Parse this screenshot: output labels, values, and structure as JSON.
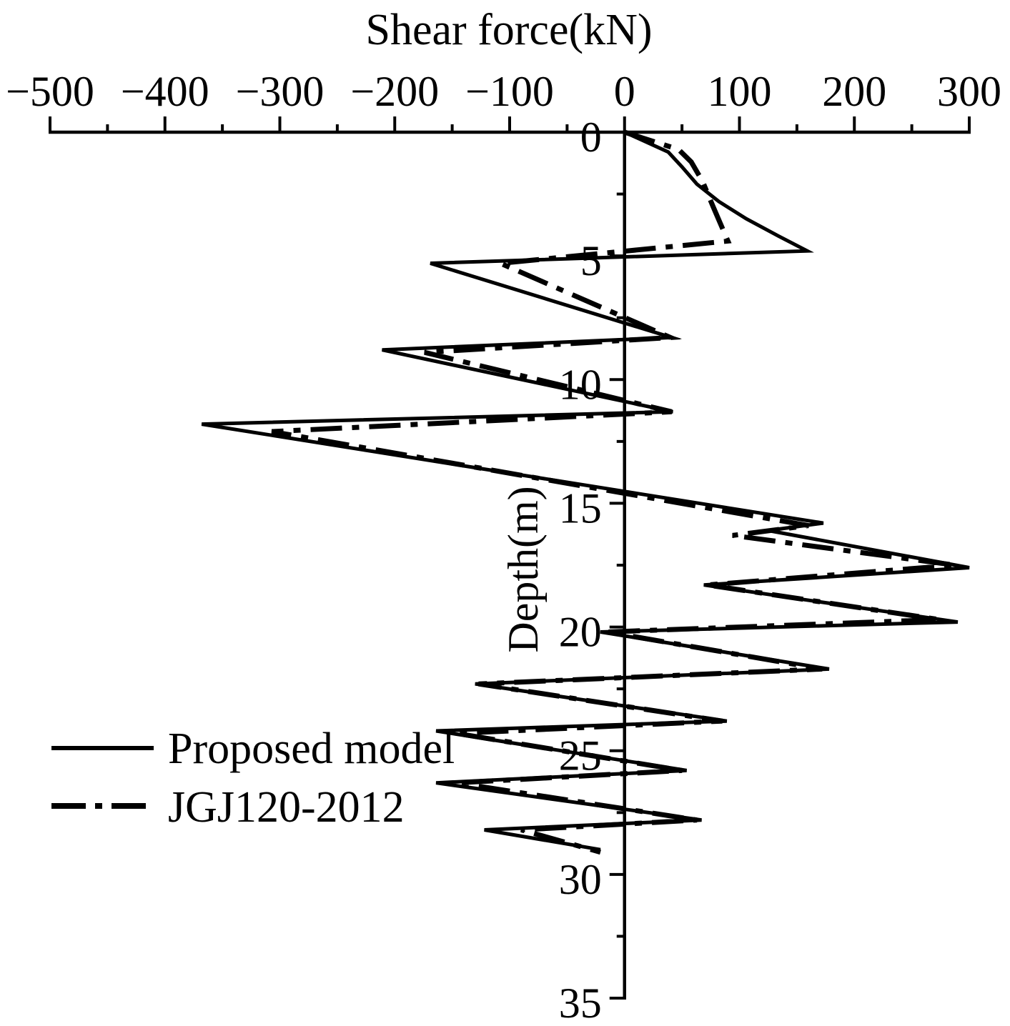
{
  "chart_data": {
    "type": "line",
    "title": "",
    "xlabel": "Shear force(kN)",
    "ylabel": "Depth(m)",
    "x_axis": {
      "position": "top",
      "range": [
        -500,
        300
      ],
      "ticks": [
        -500,
        -400,
        -300,
        -200,
        -100,
        0,
        100,
        200,
        300
      ],
      "tick_labels": [
        "−500",
        "−400",
        "−300",
        "−200",
        "−100",
        "0",
        "100",
        "200",
        "300"
      ],
      "minor_step": 50
    },
    "y_axis": {
      "crosses_at": 0,
      "inverted": true,
      "range": [
        0,
        35
      ],
      "ticks": [
        0,
        5,
        10,
        15,
        20,
        25,
        30,
        35
      ],
      "tick_labels": [
        "0",
        "5",
        "10",
        "15",
        "20",
        "25",
        "30",
        "35"
      ],
      "minor_step": 2.5
    },
    "grid": false,
    "legend": {
      "position": "bottom-left"
    },
    "series": [
      {
        "name": "Proposed model",
        "line_style": "solid",
        "color": "#000000",
        "x": [
          0,
          38,
          50,
          63,
          82,
          106,
          134,
          159,
          -169,
          41,
          -211,
          42,
          -368,
          173,
          125,
          300,
          69,
          290,
          -21,
          178,
          -130,
          89,
          -164,
          54,
          -164,
          67,
          -122,
          -21
        ],
        "y": [
          0,
          0.8,
          1.4,
          2.1,
          2.8,
          3.5,
          4.2,
          4.8,
          5.3,
          8.3,
          8.8,
          11.3,
          11.8,
          15.8,
          16.1,
          17.6,
          18.3,
          19.8,
          20.2,
          21.7,
          22.3,
          23.8,
          24.2,
          25.8,
          26.3,
          27.8,
          28.2,
          29.0
        ]
      },
      {
        "name": "JGJ120-2012",
        "line_style": "dash-dot",
        "color": "#000000",
        "x": [
          0,
          47,
          58,
          68,
          77,
          90,
          -108,
          40,
          -174,
          41,
          -307,
          160,
          94,
          288,
          72,
          274,
          -15,
          172,
          -127,
          85,
          -146,
          50,
          -146,
          63,
          -90,
          -21
        ],
        "y": [
          0,
          0.7,
          1.2,
          2.0,
          3.0,
          4.4,
          5.3,
          8.3,
          8.9,
          11.3,
          12.1,
          15.9,
          16.3,
          17.5,
          18.3,
          19.7,
          20.2,
          21.7,
          22.3,
          23.8,
          24.3,
          25.8,
          26.3,
          27.8,
          28.2,
          29.1
        ]
      }
    ]
  }
}
